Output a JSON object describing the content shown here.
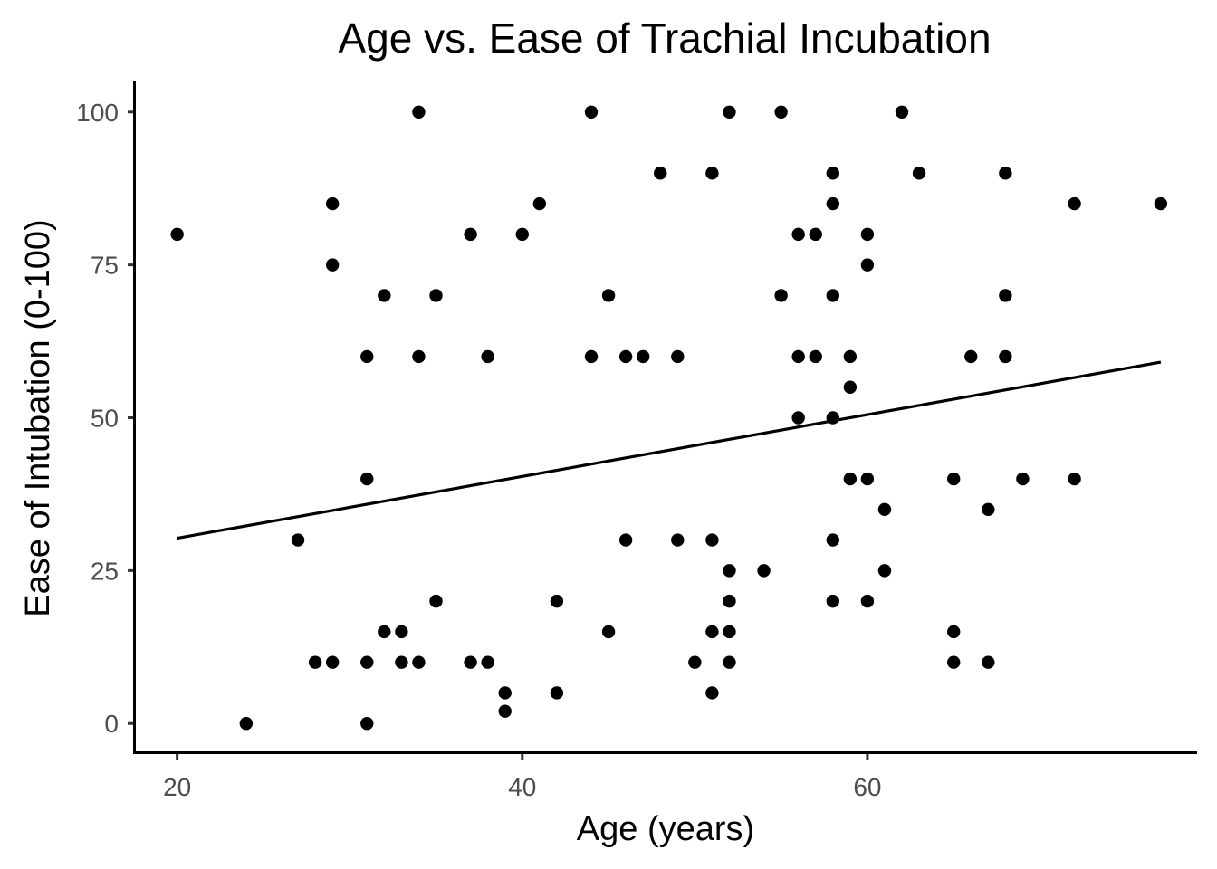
{
  "chart_data": {
    "type": "scatter",
    "title": "Age vs. Ease of Trachial Incubation",
    "xlabel": "Age (years)",
    "ylabel": "Ease of Intubation (0-100)",
    "xlim": [
      17.5,
      79
    ],
    "ylim": [
      -5,
      105
    ],
    "x_ticks": [
      20,
      40,
      60
    ],
    "y_ticks": [
      0,
      25,
      50,
      75,
      100
    ],
    "grid": false,
    "legend": "none",
    "point_color": "#000000",
    "points": [
      {
        "x": 20,
        "y": 80
      },
      {
        "x": 24,
        "y": 0
      },
      {
        "x": 27,
        "y": 30
      },
      {
        "x": 28,
        "y": 10
      },
      {
        "x": 29,
        "y": 85
      },
      {
        "x": 29,
        "y": 75
      },
      {
        "x": 29,
        "y": 10
      },
      {
        "x": 31,
        "y": 60
      },
      {
        "x": 31,
        "y": 40
      },
      {
        "x": 31,
        "y": 10
      },
      {
        "x": 31,
        "y": 0
      },
      {
        "x": 32,
        "y": 70
      },
      {
        "x": 32,
        "y": 15
      },
      {
        "x": 33,
        "y": 15
      },
      {
        "x": 33,
        "y": 10
      },
      {
        "x": 34,
        "y": 100
      },
      {
        "x": 34,
        "y": 60
      },
      {
        "x": 34,
        "y": 10
      },
      {
        "x": 35,
        "y": 70
      },
      {
        "x": 35,
        "y": 20
      },
      {
        "x": 37,
        "y": 80
      },
      {
        "x": 37,
        "y": 10
      },
      {
        "x": 38,
        "y": 60
      },
      {
        "x": 38,
        "y": 10
      },
      {
        "x": 39,
        "y": 5
      },
      {
        "x": 39,
        "y": 2
      },
      {
        "x": 40,
        "y": 80
      },
      {
        "x": 41,
        "y": 85
      },
      {
        "x": 42,
        "y": 20
      },
      {
        "x": 42,
        "y": 5
      },
      {
        "x": 44,
        "y": 100
      },
      {
        "x": 44,
        "y": 60
      },
      {
        "x": 45,
        "y": 70
      },
      {
        "x": 45,
        "y": 15
      },
      {
        "x": 46,
        "y": 60
      },
      {
        "x": 46,
        "y": 30
      },
      {
        "x": 47,
        "y": 60
      },
      {
        "x": 48,
        "y": 90
      },
      {
        "x": 49,
        "y": 60
      },
      {
        "x": 49,
        "y": 30
      },
      {
        "x": 50,
        "y": 10
      },
      {
        "x": 51,
        "y": 90
      },
      {
        "x": 51,
        "y": 30
      },
      {
        "x": 51,
        "y": 15
      },
      {
        "x": 51,
        "y": 5
      },
      {
        "x": 52,
        "y": 100
      },
      {
        "x": 52,
        "y": 25
      },
      {
        "x": 52,
        "y": 20
      },
      {
        "x": 52,
        "y": 15
      },
      {
        "x": 52,
        "y": 10
      },
      {
        "x": 54,
        "y": 25
      },
      {
        "x": 55,
        "y": 100
      },
      {
        "x": 55,
        "y": 70
      },
      {
        "x": 56,
        "y": 80
      },
      {
        "x": 56,
        "y": 60
      },
      {
        "x": 56,
        "y": 50
      },
      {
        "x": 57,
        "y": 80
      },
      {
        "x": 57,
        "y": 60
      },
      {
        "x": 58,
        "y": 90
      },
      {
        "x": 58,
        "y": 85
      },
      {
        "x": 58,
        "y": 70
      },
      {
        "x": 58,
        "y": 50
      },
      {
        "x": 58,
        "y": 30
      },
      {
        "x": 58,
        "y": 20
      },
      {
        "x": 59,
        "y": 60
      },
      {
        "x": 59,
        "y": 55
      },
      {
        "x": 59,
        "y": 40
      },
      {
        "x": 60,
        "y": 80
      },
      {
        "x": 60,
        "y": 75
      },
      {
        "x": 60,
        "y": 40
      },
      {
        "x": 60,
        "y": 20
      },
      {
        "x": 61,
        "y": 35
      },
      {
        "x": 61,
        "y": 25
      },
      {
        "x": 62,
        "y": 100
      },
      {
        "x": 63,
        "y": 90
      },
      {
        "x": 65,
        "y": 40
      },
      {
        "x": 65,
        "y": 15
      },
      {
        "x": 65,
        "y": 10
      },
      {
        "x": 66,
        "y": 60
      },
      {
        "x": 67,
        "y": 35
      },
      {
        "x": 67,
        "y": 10
      },
      {
        "x": 68,
        "y": 90
      },
      {
        "x": 68,
        "y": 70
      },
      {
        "x": 68,
        "y": 60
      },
      {
        "x": 69,
        "y": 40
      },
      {
        "x": 72,
        "y": 85
      },
      {
        "x": 72,
        "y": 40
      },
      {
        "x": 77,
        "y": 85
      }
    ],
    "trend_line": {
      "x": [
        20,
        77
      ],
      "y": [
        30.3,
        59.1
      ]
    }
  }
}
